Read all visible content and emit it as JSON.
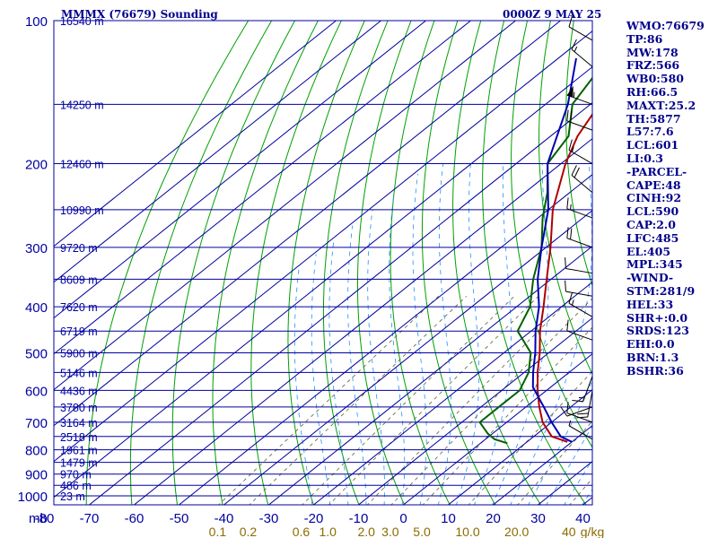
{
  "header": {
    "station": "MMMX (76679) Sounding",
    "time": "0000Z  9 MAY 25"
  },
  "colors": {
    "frame": "#0000a0",
    "isobar": "#0000a0",
    "isotherm": "#0000a0",
    "dry_adiabat": "#00a000",
    "moist_adiabat": "#1e90ff",
    "mixing_ratio": "#606030",
    "temperature": "#b00000",
    "dewpoint": "#006000",
    "parcel": "#0000b0",
    "mixratio_label": "#8b6b00",
    "text": "#00008b"
  },
  "stats": [
    "WMO:76679",
    "TP:86",
    "MW:178",
    "FRZ:566",
    "WB0:580",
    "RH:66.5",
    "MAXT:25.2",
    "TH:5877",
    "L57:7.6",
    "LCL:601",
    "LI:0.3",
    "-PARCEL-",
    "CAPE:48",
    "CINH:92",
    "LCL:590",
    "CAP:2.0",
    "LFC:485",
    "EL:405",
    "MPL:345",
    "-WIND-",
    "STM:281/9",
    "HEL:33",
    "SHR+:0.0",
    "SRDS:123",
    "EHI:0.0",
    "BRN:1.3",
    "BSHR:36"
  ],
  "chart_data": {
    "type": "line",
    "title": "MMMX (76679) Sounding",
    "subtitle": "0000Z  9 MAY 25",
    "x_axis": {
      "label": "",
      "ticks": [
        "-80",
        "-70",
        "-60",
        "-50",
        "-40",
        "-30",
        "-20",
        "-10",
        "0",
        "10",
        "20",
        "30",
        "40"
      ],
      "range": [
        -80,
        40
      ]
    },
    "y_axis": {
      "label": "mb",
      "ticks": [
        "100",
        "200",
        "300",
        "400",
        "500",
        "600",
        "700",
        "800",
        "900",
        "1000"
      ],
      "range": [
        100,
        1050
      ],
      "scale": "log"
    },
    "height_labels": [
      {
        "p": 100,
        "label": "16540 m"
      },
      {
        "p": 150,
        "label": "14250 m"
      },
      {
        "p": 200,
        "label": "12460 m"
      },
      {
        "p": 250,
        "label": "10990 m"
      },
      {
        "p": 300,
        "label": "9720 m"
      },
      {
        "p": 350,
        "label": "8609 m"
      },
      {
        "p": 400,
        "label": "7620 m"
      },
      {
        "p": 450,
        "label": "6719 m"
      },
      {
        "p": 500,
        "label": "5900 m"
      },
      {
        "p": 550,
        "label": "5146 m"
      },
      {
        "p": 600,
        "label": "4436 m"
      },
      {
        "p": 650,
        "label": "3780 m"
      },
      {
        "p": 700,
        "label": "3164 m"
      },
      {
        "p": 750,
        "label": "2518 m"
      },
      {
        "p": 800,
        "label": "1961 m"
      },
      {
        "p": 850,
        "label": "1479 m"
      },
      {
        "p": 900,
        "label": "970 m"
      },
      {
        "p": 950,
        "label": "486 m"
      },
      {
        "p": 1000,
        "label": "23 m"
      }
    ],
    "mixing_ratio_labels": [
      "0.1",
      "0.2",
      "0.6",
      "1.0",
      "2.0",
      "3.0",
      "5.0",
      "10.0",
      "20.0",
      "40",
      "g/kg"
    ],
    "series": [
      {
        "name": "",
        "kind": "temperature",
        "points": [
          [
            100,
            -77
          ],
          [
            104,
            -79
          ],
          [
            108,
            -81
          ],
          [
            112,
            -80
          ],
          [
            130,
            -75
          ],
          [
            150,
            -68
          ],
          [
            175,
            -64
          ],
          [
            200,
            -59
          ],
          [
            250,
            -49
          ],
          [
            300,
            -39
          ],
          [
            350,
            -31
          ],
          [
            400,
            -24
          ],
          [
            450,
            -18
          ],
          [
            500,
            -12
          ],
          [
            550,
            -7
          ],
          [
            600,
            -2
          ],
          [
            650,
            3
          ],
          [
            700,
            8
          ],
          [
            750,
            14
          ],
          [
            770,
            19
          ]
        ]
      },
      {
        "name": "",
        "kind": "dewpoint",
        "points": [
          [
            100,
            -80
          ],
          [
            115,
            -80
          ],
          [
            150,
            -74
          ],
          [
            175,
            -66
          ],
          [
            200,
            -63
          ],
          [
            230,
            -55
          ],
          [
            260,
            -49
          ],
          [
            300,
            -41
          ],
          [
            350,
            -34
          ],
          [
            400,
            -27
          ],
          [
            450,
            -23
          ],
          [
            500,
            -14
          ],
          [
            550,
            -9
          ],
          [
            600,
            -6
          ],
          [
            650,
            -6
          ],
          [
            700,
            -6
          ],
          [
            740,
            -1
          ],
          [
            760,
            2
          ],
          [
            775,
            6
          ]
        ]
      },
      {
        "name": "",
        "kind": "parcel",
        "points": [
          [
            120,
            -86
          ],
          [
            150,
            -75
          ],
          [
            200,
            -63
          ],
          [
            250,
            -50
          ],
          [
            300,
            -41
          ],
          [
            350,
            -33
          ],
          [
            400,
            -25
          ],
          [
            450,
            -19
          ],
          [
            500,
            -13
          ],
          [
            550,
            -8
          ],
          [
            590,
            -4
          ],
          [
            650,
            4
          ],
          [
            700,
            10
          ],
          [
            750,
            16
          ],
          [
            770,
            20
          ]
        ]
      }
    ],
    "wind_barbs": [
      {
        "p": 110,
        "dir": 300,
        "kt": 10
      },
      {
        "p": 125,
        "dir": 310,
        "kt": 15
      },
      {
        "p": 150,
        "dir": 290,
        "kt": 55
      },
      {
        "p": 170,
        "dir": 290,
        "kt": 20
      },
      {
        "p": 200,
        "dir": 300,
        "kt": 15
      },
      {
        "p": 230,
        "dir": 310,
        "kt": 20
      },
      {
        "p": 260,
        "dir": 290,
        "kt": 15
      },
      {
        "p": 300,
        "dir": 290,
        "kt": 20
      },
      {
        "p": 340,
        "dir": 280,
        "kt": 10
      },
      {
        "p": 380,
        "dir": 280,
        "kt": 10
      },
      {
        "p": 420,
        "dir": 300,
        "kt": 15
      },
      {
        "p": 470,
        "dir": 290,
        "kt": 10
      },
      {
        "p": 560,
        "dir": 200,
        "kt": 15
      },
      {
        "p": 600,
        "dir": 190,
        "kt": 20
      },
      {
        "p": 650,
        "dir": 250,
        "kt": 10
      },
      {
        "p": 700,
        "dir": 290,
        "kt": 10
      },
      {
        "p": 760,
        "dir": 300,
        "kt": 5
      }
    ]
  }
}
